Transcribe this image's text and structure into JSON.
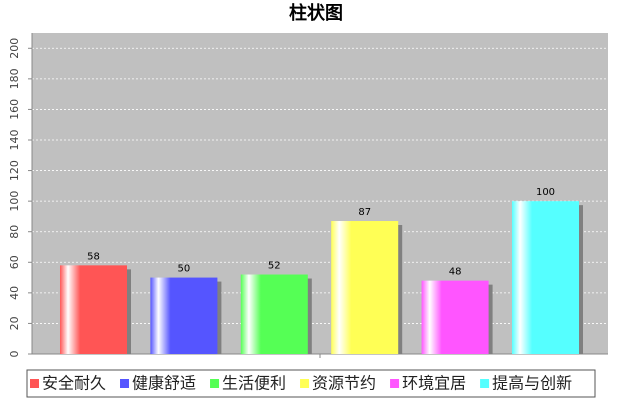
{
  "chart_data": {
    "type": "bar",
    "title": "柱状图",
    "categories": [
      null
    ],
    "series": [
      {
        "name": "安全耐久",
        "color": "#ff5555",
        "values": [
          58
        ]
      },
      {
        "name": "健康舒适",
        "color": "#5555ff",
        "values": [
          50
        ]
      },
      {
        "name": "生活便利",
        "color": "#55ff55",
        "values": [
          52
        ]
      },
      {
        "name": "资源节约",
        "color": "#ffff55",
        "values": [
          87
        ]
      },
      {
        "name": "环境宜居",
        "color": "#ff55ff",
        "values": [
          48
        ]
      },
      {
        "name": "提高与创新",
        "color": "#55ffff",
        "values": [
          100
        ]
      }
    ],
    "ylim": [
      0,
      210
    ],
    "yticks": [
      0,
      20,
      40,
      60,
      80,
      100,
      120,
      140,
      160,
      180,
      200
    ],
    "grid": true,
    "legend": "bottom"
  }
}
